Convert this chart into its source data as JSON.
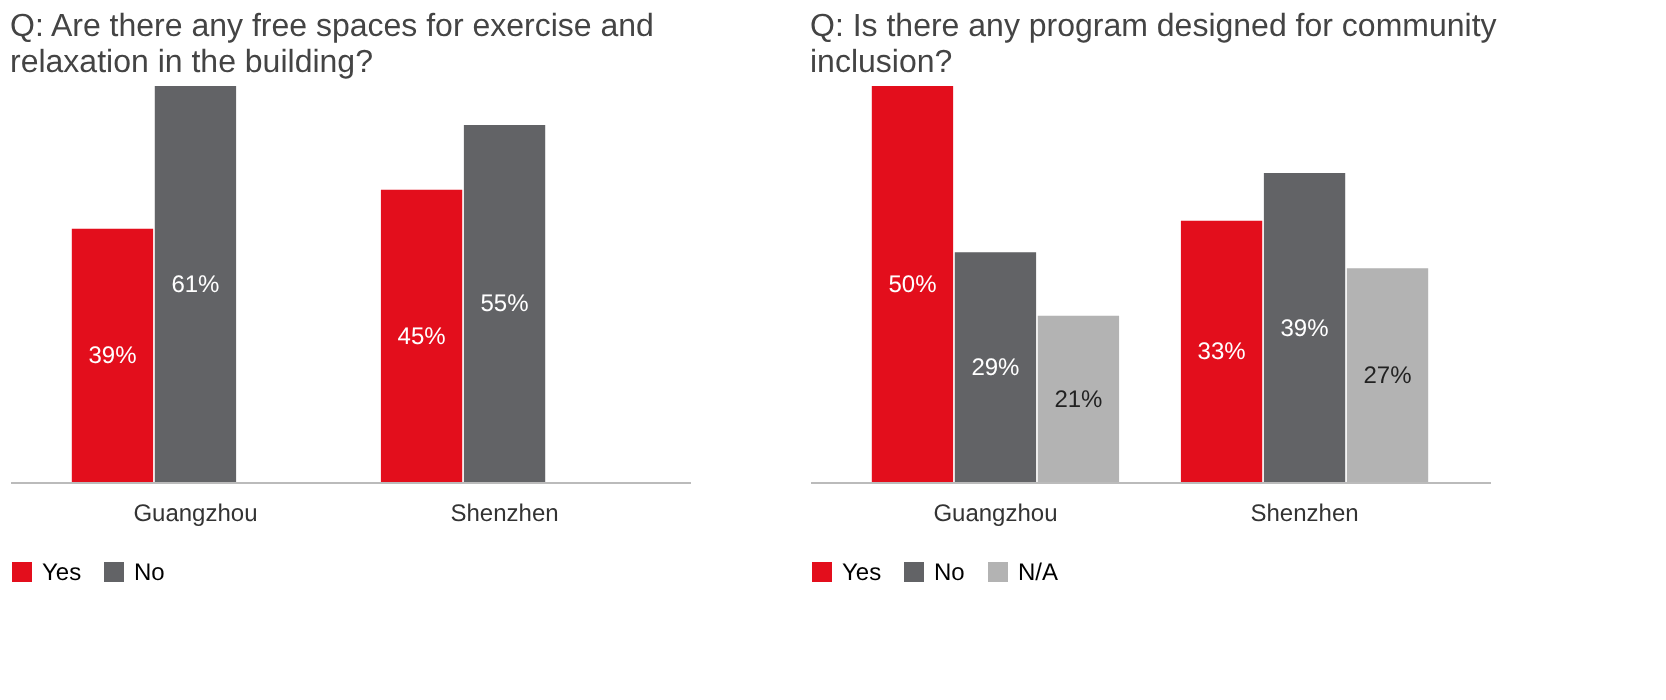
{
  "chart_data": [
    {
      "type": "bar",
      "title": "Q: Are there any free spaces for exercise and relaxation in the building?",
      "categories": [
        "Guangzhou",
        "Shenzhen"
      ],
      "legend": "bottom",
      "series": [
        {
          "name": "Yes",
          "color": "#e30e1c",
          "values": [
            39,
            45
          ],
          "value_labels": [
            "39%",
            "45%"
          ]
        },
        {
          "name": "No",
          "color": "#626366",
          "values": [
            61,
            55
          ],
          "value_labels": [
            "61%",
            "55%"
          ]
        }
      ]
    },
    {
      "type": "bar",
      "title": "Q: Is there any program designed for community inclusion?",
      "categories": [
        "Guangzhou",
        "Shenzhen"
      ],
      "legend": "bottom",
      "series": [
        {
          "name": "Yes",
          "color": "#e30e1c",
          "values": [
            50,
            33
          ],
          "value_labels": [
            "50%",
            "33%"
          ]
        },
        {
          "name": "No",
          "color": "#626366",
          "values": [
            29,
            39
          ],
          "value_labels": [
            "29%",
            "39%"
          ]
        },
        {
          "name": "N/A",
          "color": "#b3b3b3",
          "values": [
            21,
            27
          ],
          "value_labels": [
            "21%",
            "27%"
          ]
        }
      ]
    }
  ]
}
